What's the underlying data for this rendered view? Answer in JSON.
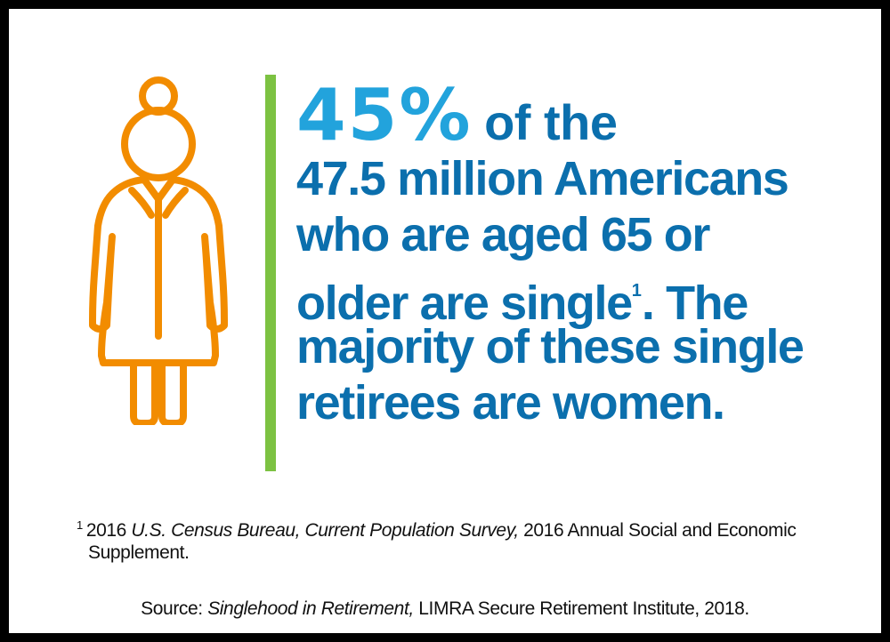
{
  "headline": {
    "percent": "45%",
    "line1_rest": "of the",
    "line2": "47.5 million Americans",
    "line3": "who are aged 65 or",
    "line4_a": "older are single",
    "line4_ref": "1",
    "line4_b": ". The",
    "line5": "majority of these single",
    "line6": "retirees are women."
  },
  "footnote": {
    "marker": "1",
    "year": "2016",
    "source_italic": "U.S. Census Bureau, Current Population Survey,",
    "rest_line1": "2016 Annual Social and Economic",
    "line2": "Supplement."
  },
  "source": {
    "label": "Source:",
    "title_italic": "Singlehood in Retirement,",
    "rest": "LIMRA Secure Retirement Institute, 2018."
  },
  "colors": {
    "headline_blue": "#0b6fad",
    "percent_blue": "#22a3dc",
    "divider_green": "#7cc242",
    "icon_orange": "#f28c00",
    "border_black": "#000000"
  },
  "icons": {
    "figure": "elderly-woman-icon"
  }
}
